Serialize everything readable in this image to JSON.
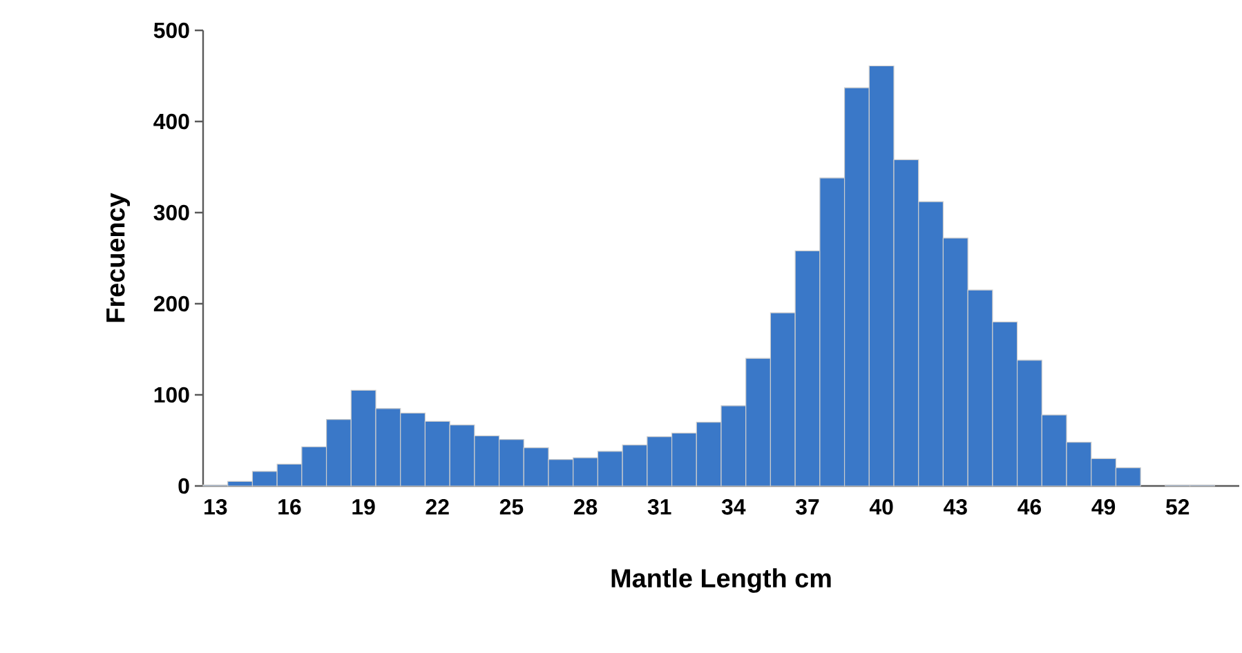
{
  "chart_data": {
    "type": "bar",
    "xlabel": "Mantle Length cm",
    "ylabel": "Frecuency",
    "categories": [
      "13",
      null,
      null,
      "16",
      null,
      null,
      "19",
      null,
      null,
      "22",
      null,
      null,
      "25",
      null,
      null,
      "28",
      null,
      null,
      "31",
      null,
      null,
      "34",
      null,
      null,
      "37",
      null,
      null,
      "40",
      null,
      null,
      "43",
      null,
      null,
      "46",
      null,
      null,
      "49",
      null,
      null,
      "52",
      null,
      null
    ],
    "values": [
      1,
      5,
      16,
      24,
      43,
      73,
      105,
      85,
      80,
      71,
      67,
      55,
      51,
      42,
      29,
      31,
      38,
      45,
      54,
      58,
      70,
      88,
      140,
      190,
      258,
      338,
      437,
      461,
      358,
      312,
      272,
      215,
      180,
      138,
      78,
      48,
      30,
      20,
      null,
      1,
      1,
      null
    ],
    "color": "#3a78c8",
    "ylim": [
      0,
      500
    ],
    "yticks": [
      0,
      100,
      200,
      300,
      400,
      500
    ]
  }
}
